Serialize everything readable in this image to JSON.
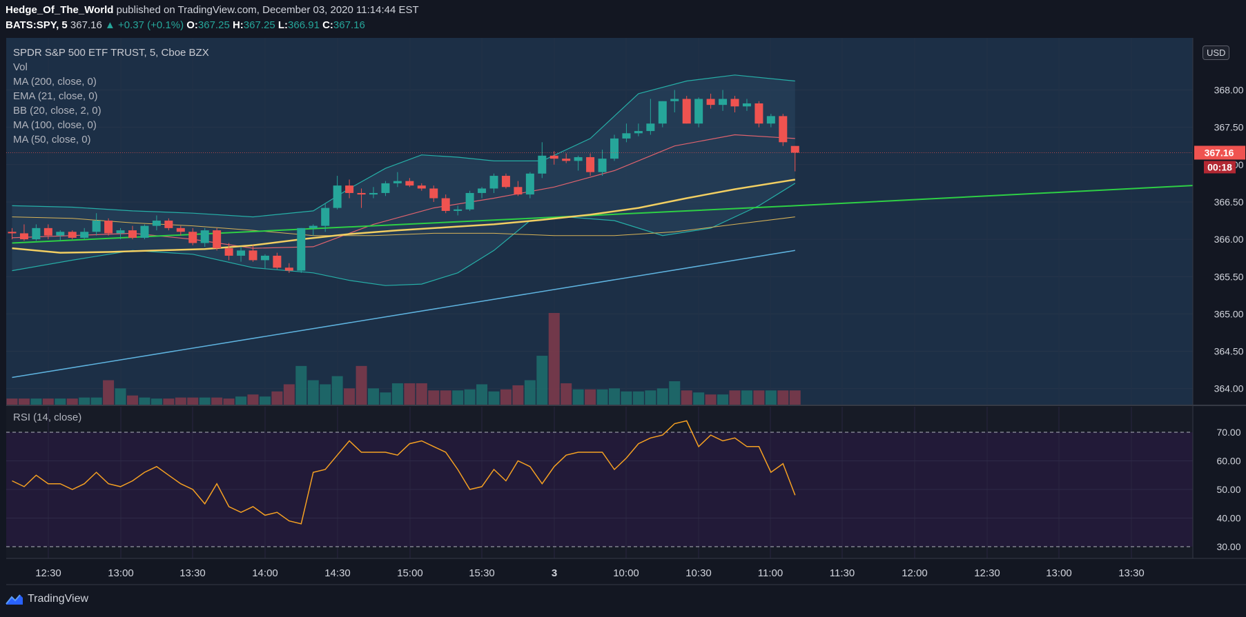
{
  "header": {
    "author": "Hedge_Of_The_World",
    "published": "published on TradingView.com, December 03, 2020 11:14:44 EST",
    "symbol": "BATS:SPY, 5",
    "price": "367.16",
    "change": "▲ +0.37 (+0.1%)",
    "o_label": "O:",
    "o": "367.25",
    "h_label": "H:",
    "h": "367.25",
    "l_label": "L:",
    "l": "366.91",
    "c_label": "C:",
    "c": "367.16"
  },
  "legend": {
    "title": "SPDR S&P 500 ETF TRUST, 5, Cboe BZX",
    "items": [
      "Vol",
      "MA (200, close, 0)",
      "EMA (21, close, 0)",
      "BB (20, close, 2, 0)",
      "MA (100, close, 0)",
      "MA (50, close, 0)"
    ]
  },
  "currency": "USD",
  "last_price_label": "367.16",
  "countdown_label": "00:18",
  "rsi_label": "RSI (14, close)",
  "branding": "TradingView",
  "colors": {
    "up": "#26a69a",
    "down": "#ef5350",
    "bg": "#131722",
    "main_pane": "#1c2f46",
    "rsi_pane": "#221a38",
    "ma200": "#5fb4e0",
    "ma100": "#2ed045",
    "ma50": "#f2cf62",
    "bb": "#26b0a8",
    "ema21": "#e0636e",
    "rsi": "#f6a122"
  },
  "chart_data": {
    "type": "candlestick",
    "price_axis": {
      "ylim": [
        363.8,
        368.2
      ],
      "ticks": [
        "368.00",
        "367.50",
        "367.00",
        "366.50",
        "366.00",
        "365.50",
        "365.00",
        "364.50",
        "364.00"
      ]
    },
    "time_axis": {
      "ticks": [
        "12:30",
        "13:00",
        "13:30",
        "14:00",
        "14:30",
        "15:00",
        "15:30",
        "3",
        "10:00",
        "10:30",
        "11:00",
        "11:30",
        "12:00",
        "12:30",
        "13:00",
        "13:30"
      ]
    },
    "rsi_axis": {
      "ylim": [
        30,
        70
      ],
      "ticks": [
        "70.00",
        "60.00",
        "50.00",
        "40.00",
        "30.00"
      ]
    },
    "candles": [
      [
        366.1,
        366.15,
        366.0,
        366.08
      ],
      [
        366.08,
        366.2,
        365.98,
        366.0
      ],
      [
        366.0,
        366.2,
        365.98,
        366.15
      ],
      [
        366.15,
        366.2,
        366.0,
        366.05
      ],
      [
        366.05,
        366.12,
        365.98,
        366.1
      ],
      [
        366.1,
        366.12,
        366.0,
        366.02
      ],
      [
        366.02,
        366.15,
        366.0,
        366.1
      ],
      [
        366.1,
        366.35,
        366.05,
        366.25
      ],
      [
        366.25,
        366.28,
        366.05,
        366.08
      ],
      [
        366.08,
        366.15,
        366.0,
        366.12
      ],
      [
        366.12,
        366.18,
        366.0,
        366.02
      ],
      [
        366.02,
        366.2,
        366.0,
        366.18
      ],
      [
        366.18,
        366.32,
        366.12,
        366.25
      ],
      [
        366.25,
        366.28,
        366.12,
        366.15
      ],
      [
        366.15,
        366.18,
        366.05,
        366.1
      ],
      [
        366.1,
        366.15,
        365.92,
        365.95
      ],
      [
        365.95,
        366.15,
        365.9,
        366.12
      ],
      [
        366.12,
        366.15,
        365.85,
        365.88
      ],
      [
        365.88,
        365.95,
        365.72,
        365.78
      ],
      [
        365.78,
        365.9,
        365.7,
        365.85
      ],
      [
        365.85,
        365.92,
        365.7,
        365.72
      ],
      [
        365.72,
        365.8,
        365.6,
        365.78
      ],
      [
        365.78,
        365.82,
        365.6,
        365.62
      ],
      [
        365.62,
        365.68,
        365.55,
        365.58
      ],
      [
        365.58,
        366.15,
        365.55,
        366.15
      ],
      [
        366.15,
        366.2,
        366.05,
        366.18
      ],
      [
        366.18,
        366.48,
        366.1,
        366.42
      ],
      [
        366.42,
        366.85,
        366.4,
        366.72
      ],
      [
        366.72,
        366.8,
        366.55,
        366.62
      ],
      [
        366.62,
        366.68,
        366.42,
        366.6
      ],
      [
        366.6,
        366.7,
        366.55,
        366.62
      ],
      [
        366.62,
        366.78,
        366.58,
        366.75
      ],
      [
        366.75,
        366.9,
        366.7,
        366.78
      ],
      [
        366.78,
        366.82,
        366.7,
        366.72
      ],
      [
        366.72,
        366.75,
        366.65,
        366.68
      ],
      [
        366.68,
        366.72,
        366.5,
        366.55
      ],
      [
        366.55,
        366.6,
        366.35,
        366.38
      ],
      [
        366.38,
        366.45,
        366.32,
        366.4
      ],
      [
        366.4,
        366.65,
        366.38,
        366.62
      ],
      [
        366.62,
        366.7,
        366.55,
        366.68
      ],
      [
        366.68,
        366.88,
        366.62,
        366.85
      ],
      [
        366.85,
        366.88,
        366.68,
        366.7
      ],
      [
        366.7,
        366.78,
        366.58,
        366.6
      ],
      [
        366.6,
        366.9,
        366.55,
        366.88
      ],
      [
        366.88,
        367.3,
        366.82,
        367.12
      ],
      [
        367.12,
        367.18,
        367.0,
        367.08
      ],
      [
        367.08,
        367.15,
        367.02,
        367.05
      ],
      [
        367.05,
        367.12,
        366.92,
        367.1
      ],
      [
        367.1,
        367.15,
        366.85,
        366.9
      ],
      [
        366.9,
        367.2,
        366.85,
        367.08
      ],
      [
        367.08,
        367.4,
        367.05,
        367.35
      ],
      [
        367.35,
        367.55,
        367.3,
        367.42
      ],
      [
        367.42,
        367.55,
        367.38,
        367.45
      ],
      [
        367.45,
        367.88,
        367.4,
        367.55
      ],
      [
        367.55,
        367.85,
        367.5,
        367.85
      ],
      [
        367.85,
        368.0,
        367.7,
        367.88
      ],
      [
        367.88,
        367.92,
        367.55,
        367.55
      ],
      [
        367.55,
        367.9,
        367.5,
        367.88
      ],
      [
        367.88,
        367.95,
        367.75,
        367.8
      ],
      [
        367.8,
        368.0,
        367.72,
        367.88
      ],
      [
        367.88,
        367.92,
        367.7,
        367.78
      ],
      [
        367.78,
        367.88,
        367.72,
        367.82
      ],
      [
        367.82,
        367.85,
        367.5,
        367.55
      ],
      [
        367.55,
        367.68,
        367.5,
        367.65
      ],
      [
        367.65,
        367.68,
        367.25,
        367.3
      ],
      [
        367.25,
        367.25,
        366.91,
        367.16
      ]
    ],
    "volumes": [
      6,
      6,
      6,
      6,
      6,
      6,
      7,
      7,
      24,
      16,
      9,
      7,
      6,
      6,
      7,
      7,
      7,
      7,
      6,
      8,
      10,
      8,
      13,
      20,
      38,
      24,
      20,
      28,
      16,
      38,
      16,
      12,
      21,
      21,
      21,
      14,
      14,
      14,
      15,
      20,
      13,
      15,
      19,
      24,
      48,
      90,
      21,
      15,
      15,
      15,
      16,
      13,
      13,
      14,
      16,
      23,
      14,
      12,
      10,
      10,
      14,
      14,
      14,
      14,
      14,
      14
    ],
    "ma200": {
      "x": [
        0,
        65
      ],
      "y": [
        364.15,
        365.85
      ]
    },
    "ma100": {
      "x": [
        0,
        65,
        98
      ],
      "y": [
        365.95,
        366.45,
        366.72
      ]
    },
    "ma50": {
      "x": [
        0,
        4,
        8,
        12,
        16,
        20,
        24,
        28,
        32,
        36,
        40,
        44,
        48,
        52,
        56,
        60,
        65
      ],
      "y": [
        365.88,
        365.82,
        365.83,
        365.85,
        365.87,
        365.92,
        366.0,
        366.07,
        366.12,
        366.16,
        366.2,
        366.26,
        366.33,
        366.42,
        366.55,
        366.67,
        366.8
      ]
    },
    "ema21": {
      "x": [
        0,
        5,
        10,
        15,
        20,
        25,
        30,
        35,
        40,
        45,
        50,
        55,
        60,
        65
      ],
      "y": [
        366.02,
        366.05,
        366.08,
        366.0,
        365.88,
        365.9,
        366.2,
        366.42,
        366.55,
        366.7,
        366.92,
        367.25,
        367.4,
        367.35
      ]
    },
    "bb_upper": {
      "x": [
        0,
        5,
        10,
        15,
        20,
        25,
        28,
        31,
        34,
        37,
        40,
        44,
        48,
        52,
        56,
        60,
        65
      ],
      "y": [
        366.45,
        366.43,
        366.38,
        366.35,
        366.3,
        366.38,
        366.68,
        366.95,
        367.13,
        367.1,
        367.05,
        367.05,
        367.35,
        367.95,
        368.12,
        368.2,
        368.12
      ]
    },
    "bb_lower": {
      "x": [
        0,
        5,
        10,
        15,
        20,
        25,
        28,
        31,
        34,
        37,
        40,
        43,
        46,
        50,
        54,
        58,
        62,
        65
      ],
      "y": [
        365.58,
        365.72,
        365.85,
        365.8,
        365.62,
        365.55,
        365.45,
        365.38,
        365.4,
        365.55,
        365.85,
        366.25,
        366.3,
        366.25,
        366.05,
        366.15,
        366.45,
        366.75
      ]
    },
    "bb_basis": {
      "x": [
        0,
        5,
        10,
        15,
        20,
        25,
        30,
        35,
        40,
        45,
        50,
        55,
        60,
        65
      ],
      "y": [
        366.3,
        366.28,
        366.22,
        366.18,
        366.12,
        366.05,
        366.05,
        366.08,
        366.08,
        366.05,
        366.05,
        366.1,
        366.2,
        366.3
      ]
    },
    "rsi": [
      53,
      51,
      55,
      52,
      52,
      50,
      52,
      56,
      52,
      51,
      53,
      56,
      58,
      55,
      52,
      50,
      45,
      52,
      44,
      42,
      44,
      41,
      42,
      39,
      38,
      56,
      57,
      62,
      67,
      63,
      63,
      63,
      62,
      66,
      67,
      65,
      63,
      57,
      50,
      51,
      57,
      53,
      60,
      58,
      52,
      58,
      62,
      63,
      63,
      63,
      57,
      61,
      66,
      68,
      69,
      73,
      74,
      65,
      69,
      67,
      68,
      65,
      65,
      56,
      59,
      48
    ]
  }
}
